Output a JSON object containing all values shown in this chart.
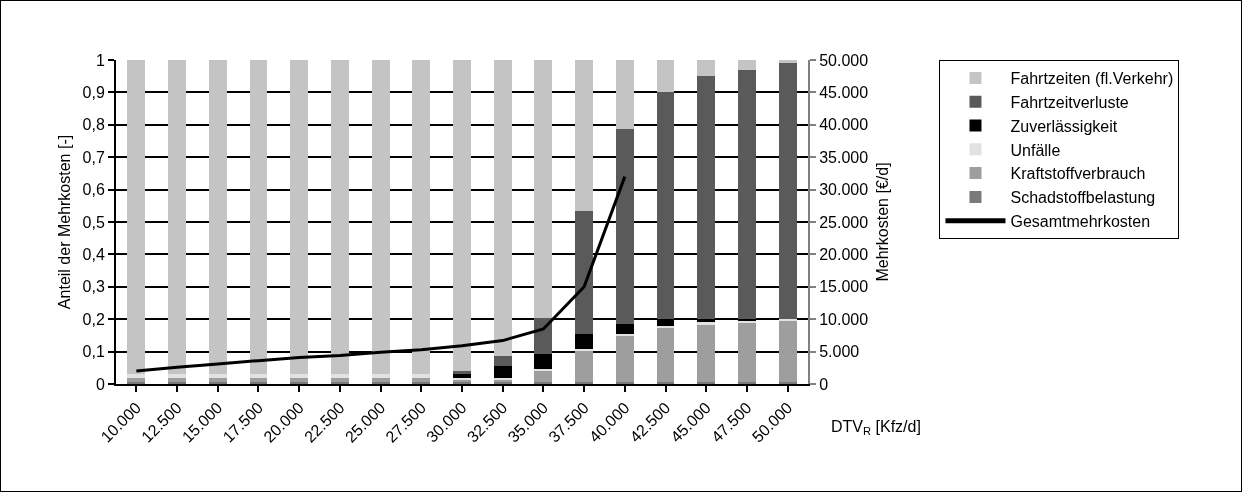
{
  "chart_data": {
    "type": "bar",
    "stacked": true,
    "xlabel": "DTV$_{R}$ [Kfz/d]",
    "ylabel": "Anteil der Mehrkosten [-]",
    "y2label": "Mehrkosten [€/d]",
    "categories": [
      "10.000",
      "12.500",
      "15.000",
      "17.500",
      "20.000",
      "22.500",
      "25.000",
      "27.500",
      "30.000",
      "32.500",
      "35.000",
      "37.500",
      "40.000",
      "42.500",
      "45.000",
      "47.500",
      "50.000"
    ],
    "series": [
      {
        "name": "Schadstoffbelastung",
        "color": "#7a7a7a",
        "values": [
          0.005,
          0.005,
          0.005,
          0.005,
          0.005,
          0.005,
          0.005,
          0.005,
          0.005,
          0.005,
          0.005,
          0.005,
          0.005,
          0.005,
          0.005,
          0.005,
          0.005
        ]
      },
      {
        "name": "Kraftstoffverbrauch",
        "color": "#9e9e9e",
        "values": [
          0.015,
          0.015,
          0.015,
          0.015,
          0.015,
          0.015,
          0.015,
          0.015,
          0.01,
          0.01,
          0.036,
          0.098,
          0.145,
          0.17,
          0.18,
          0.186,
          0.19
        ]
      },
      {
        "name": "Unfälle",
        "color": "#e2e2e2",
        "values": [
          0.01,
          0.01,
          0.01,
          0.01,
          0.01,
          0.01,
          0.01,
          0.01,
          0.005,
          0.005,
          0.005,
          0.005,
          0.005,
          0.005,
          0.005,
          0.005,
          0.005
        ]
      },
      {
        "name": "Zuverlässigkeit",
        "color": "#000000",
        "values": [
          0,
          0,
          0,
          0,
          0,
          0,
          0,
          0,
          0.01,
          0.037,
          0.047,
          0.047,
          0.031,
          0.02,
          0.01,
          0.004,
          0
        ]
      },
      {
        "name": "Fahrtzeitverluste",
        "color": "#5a5a5a",
        "values": [
          0,
          0,
          0,
          0,
          0,
          0,
          0,
          0,
          0.01,
          0.03,
          0.11,
          0.38,
          0.6,
          0.7,
          0.75,
          0.77,
          0.79
        ]
      },
      {
        "name": "Fahrtzeiten (fl.Verkehr)",
        "color": "#c4c4c4",
        "values": [
          0.97,
          0.97,
          0.97,
          0.97,
          0.97,
          0.97,
          0.97,
          0.97,
          0.96,
          0.913,
          0.797,
          0.465,
          0.214,
          0.1,
          0.05,
          0.03,
          0.01
        ]
      },
      {
        "name": "Gesamtmehrkosten",
        "type": "line",
        "axis": "y2",
        "color": "#000000",
        "values": [
          2000,
          2600,
          3100,
          3600,
          4100,
          4400,
          4900,
          5300,
          5900,
          6700,
          8500,
          15000,
          32000,
          null,
          null,
          null,
          null
        ]
      }
    ],
    "ylim": [
      0,
      1
    ],
    "yticks": [
      0,
      {
        "value": 0.1,
        "label": "0,1"
      },
      {
        "value": 0.2,
        "label": "0,2"
      },
      {
        "value": 0.3,
        "label": "0,3"
      },
      {
        "value": 0.4,
        "label": "0,4"
      },
      {
        "value": 0.5,
        "label": "0,5"
      },
      {
        "value": 0.6,
        "label": "0,6"
      },
      {
        "value": 0.7,
        "label": "0,7"
      },
      {
        "value": 0.8,
        "label": "0,8"
      },
      {
        "value": 0.9,
        "label": "0,9"
      },
      1
    ],
    "y2lim": [
      0,
      50000
    ],
    "y2ticks": [
      0,
      {
        "value": 5000,
        "label": "5.000"
      },
      {
        "value": 10000,
        "label": "10.000"
      },
      {
        "value": 15000,
        "label": "15.000"
      },
      {
        "value": 20000,
        "label": "20.000"
      },
      {
        "value": 25000,
        "label": "25.000"
      },
      {
        "value": 30000,
        "label": "30.000"
      },
      {
        "value": 35000,
        "label": "35.000"
      },
      {
        "value": 40000,
        "label": "40.000"
      },
      {
        "value": 45000,
        "label": "45.000"
      },
      {
        "value": 50000,
        "label": "50.000"
      }
    ],
    "grid": "y",
    "legend": "right",
    "marker": "none",
    "line_style": "solid"
  }
}
